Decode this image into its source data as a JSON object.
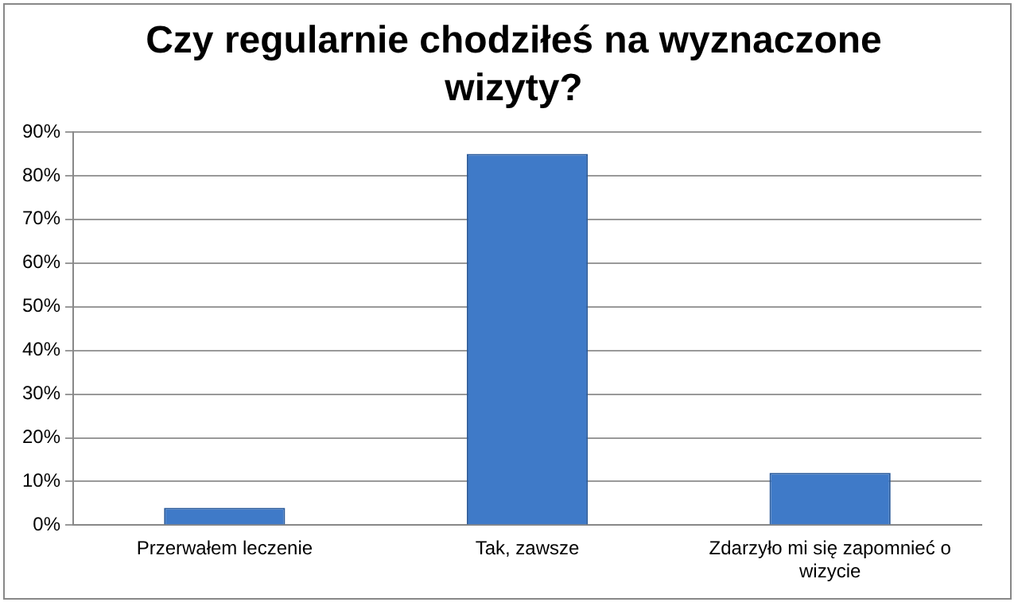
{
  "chart_data": {
    "type": "bar",
    "title": "Czy regularnie chodziłeś na wyznaczone wizyty?",
    "categories": [
      "Przerwałem leczenie",
      "Tak, zawsze",
      "Zdarzyło mi się zapomnieć o wizycie"
    ],
    "values": [
      4,
      85,
      12
    ],
    "color": "#3f7ac8",
    "ylim": [
      0,
      90
    ],
    "yticks": [
      {
        "value": 0,
        "label": "0%"
      },
      {
        "value": 10,
        "label": "10%"
      },
      {
        "value": 20,
        "label": "20%"
      },
      {
        "value": 30,
        "label": "30%"
      },
      {
        "value": 40,
        "label": "40%"
      },
      {
        "value": 50,
        "label": "50%"
      },
      {
        "value": 60,
        "label": "60%"
      },
      {
        "value": 70,
        "label": "70%"
      },
      {
        "value": 80,
        "label": "80%"
      },
      {
        "value": 90,
        "label": "90%"
      }
    ],
    "grid": "y"
  }
}
